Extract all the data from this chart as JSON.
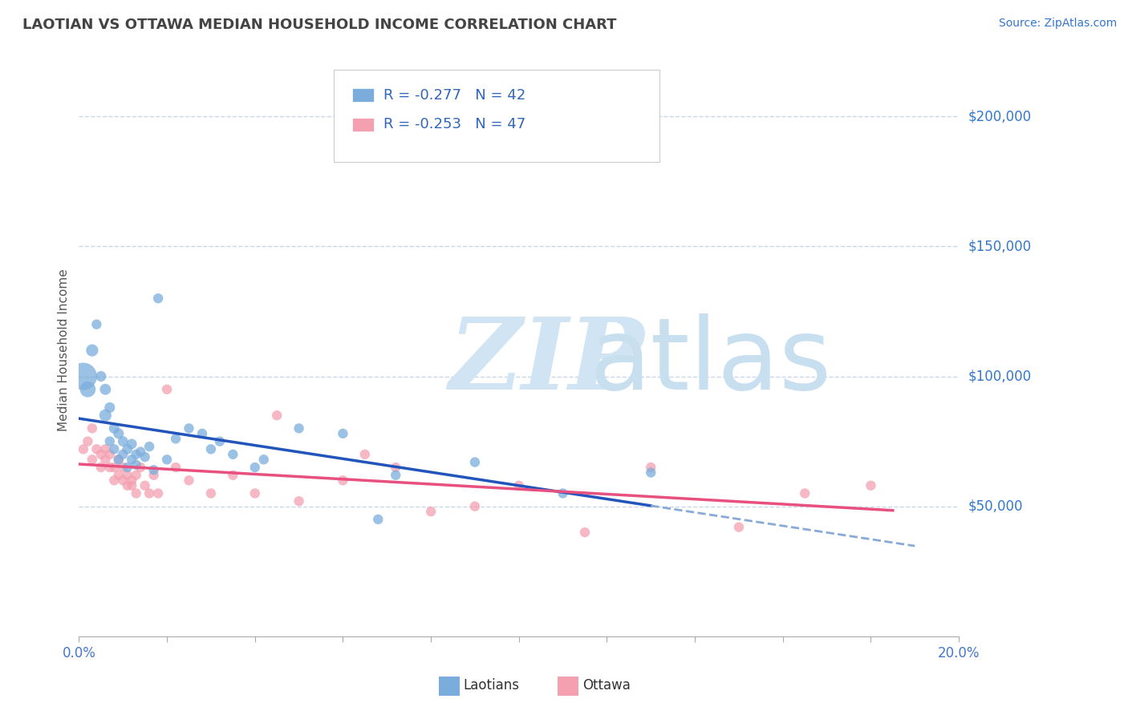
{
  "title": "LAOTIAN VS OTTAWA MEDIAN HOUSEHOLD INCOME CORRELATION CHART",
  "source_text": "Source: ZipAtlas.com",
  "ylabel": "Median Household Income",
  "xlim": [
    0.0,
    0.2
  ],
  "ylim": [
    0,
    220000
  ],
  "ytick_values": [
    50000,
    100000,
    150000,
    200000
  ],
  "ytick_labels": [
    "$50,000",
    "$100,000",
    "$150,000",
    "$200,000"
  ],
  "grid_color": "#c8d8e8",
  "background_color": "#ffffff",
  "laotians_color": "#7aaddb",
  "ottawa_color": "#f4a0b0",
  "laotians_alpha": 0.75,
  "ottawa_alpha": 0.75,
  "laotians_R": -0.277,
  "laotians_N": 42,
  "ottawa_R": -0.253,
  "ottawa_N": 47,
  "laotians_x": [
    0.001,
    0.002,
    0.003,
    0.004,
    0.005,
    0.006,
    0.006,
    0.007,
    0.007,
    0.008,
    0.008,
    0.009,
    0.009,
    0.01,
    0.01,
    0.011,
    0.011,
    0.012,
    0.012,
    0.013,
    0.013,
    0.014,
    0.015,
    0.016,
    0.017,
    0.018,
    0.02,
    0.022,
    0.025,
    0.028,
    0.03,
    0.032,
    0.035,
    0.04,
    0.042,
    0.05,
    0.06,
    0.068,
    0.072,
    0.09,
    0.11,
    0.13
  ],
  "laotians_y": [
    100000,
    95000,
    110000,
    120000,
    100000,
    85000,
    95000,
    75000,
    88000,
    72000,
    80000,
    68000,
    78000,
    70000,
    75000,
    65000,
    72000,
    68000,
    74000,
    70000,
    66000,
    71000,
    69000,
    73000,
    64000,
    130000,
    68000,
    76000,
    80000,
    78000,
    72000,
    75000,
    70000,
    65000,
    68000,
    80000,
    78000,
    45000,
    62000,
    67000,
    55000,
    63000
  ],
  "laotians_sizes": [
    600,
    200,
    120,
    80,
    90,
    120,
    100,
    80,
    90,
    80,
    90,
    80,
    90,
    80,
    85,
    80,
    85,
    80,
    85,
    80,
    80,
    80,
    80,
    80,
    80,
    80,
    80,
    80,
    80,
    80,
    80,
    80,
    80,
    80,
    80,
    80,
    80,
    80,
    80,
    80,
    80,
    80
  ],
  "ottawa_x": [
    0.001,
    0.002,
    0.003,
    0.003,
    0.004,
    0.005,
    0.005,
    0.006,
    0.006,
    0.007,
    0.007,
    0.008,
    0.008,
    0.009,
    0.009,
    0.01,
    0.01,
    0.011,
    0.011,
    0.012,
    0.012,
    0.013,
    0.013,
    0.014,
    0.015,
    0.016,
    0.017,
    0.018,
    0.02,
    0.022,
    0.025,
    0.03,
    0.035,
    0.04,
    0.045,
    0.05,
    0.06,
    0.065,
    0.072,
    0.08,
    0.09,
    0.1,
    0.115,
    0.13,
    0.15,
    0.165,
    0.18
  ],
  "ottawa_y": [
    72000,
    75000,
    80000,
    68000,
    72000,
    65000,
    70000,
    68000,
    72000,
    65000,
    70000,
    65000,
    60000,
    62000,
    68000,
    65000,
    60000,
    58000,
    62000,
    60000,
    58000,
    55000,
    62000,
    65000,
    58000,
    55000,
    62000,
    55000,
    95000,
    65000,
    60000,
    55000,
    62000,
    55000,
    85000,
    52000,
    60000,
    70000,
    65000,
    48000,
    50000,
    58000,
    40000,
    65000,
    42000,
    55000,
    58000
  ],
  "ottawa_sizes": [
    80,
    80,
    80,
    80,
    80,
    80,
    80,
    80,
    80,
    80,
    80,
    80,
    80,
    80,
    80,
    80,
    80,
    80,
    80,
    80,
    80,
    80,
    80,
    80,
    80,
    80,
    80,
    80,
    80,
    80,
    80,
    80,
    80,
    80,
    80,
    80,
    80,
    80,
    80,
    80,
    80,
    80,
    80,
    80,
    80,
    80,
    80
  ],
  "watermark_zip": "ZIP",
  "watermark_atlas": "atlas",
  "watermark_color_zip": "#d0e4f4",
  "watermark_color_atlas": "#c8dff0",
  "trendline_blue_color": "#2255bb",
  "trendline_pink_color": "#e85080",
  "trendline_dashed_color": "#88aad8",
  "legend_text_color": "#3366bb",
  "ytick_color": "#3377cc",
  "title_color": "#444444",
  "source_color": "#3377cc",
  "xtick_color": "#4477cc",
  "ylabel_color": "#555555"
}
